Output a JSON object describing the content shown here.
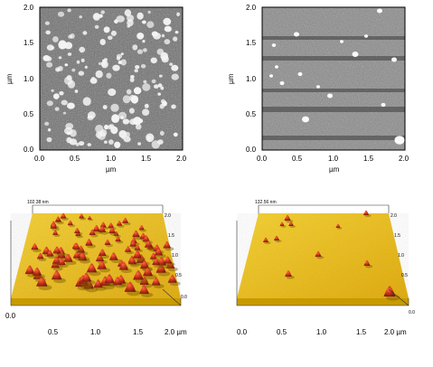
{
  "panels": {
    "top_left": {
      "y_ticks": [
        "2.0",
        "1.5",
        "1.0",
        "0.5",
        "0.0"
      ],
      "x_ticks": [
        "0.0",
        "0.5",
        "1.0",
        "1.5",
        "2.0"
      ],
      "x_unit": "µm",
      "y_unit": "µm"
    },
    "top_right": {
      "y_ticks": [
        "2.0",
        "1.5",
        "1.0",
        "0.5",
        "0.0"
      ],
      "x_ticks": [
        "0.0",
        "0.5",
        "1.0",
        "1.5",
        "2.0"
      ],
      "x_unit": "µm",
      "y_unit": "µm"
    },
    "bottom_left": {
      "z_max": "102.38 nm",
      "x_ticks": [
        "0.0",
        "0.5",
        "1.0",
        "1.5",
        "2.0 µm"
      ],
      "y_ticks": [
        "2.0",
        "1.5",
        "1.0",
        "0.5",
        "0.0"
      ]
    },
    "bottom_right": {
      "z_max": "132.56 nm",
      "x_ticks": [
        "0.0",
        "0.5",
        "1.0",
        "1.5",
        "2.0 µm"
      ],
      "y_ticks": [
        "2.0",
        "1.5",
        "1.0",
        "0.5",
        "0.0"
      ]
    }
  },
  "colors": {
    "surface_yellow": "#f2c200",
    "peak_red": "#b02010",
    "afm_gray": "#7a7a7a"
  }
}
